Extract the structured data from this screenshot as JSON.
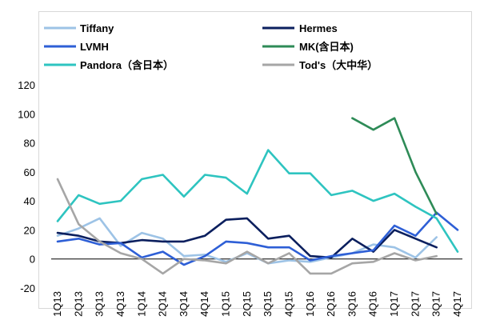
{
  "chart_data": {
    "type": "line",
    "title": "",
    "xlabel": "",
    "ylabel": "",
    "ylim": [
      -20,
      120
    ],
    "yticks": [
      -20,
      0,
      20,
      40,
      60,
      80,
      100,
      120
    ],
    "grid": false,
    "legend_position": "top",
    "categories": [
      "1Q13",
      "2Q13",
      "3Q13",
      "4Q13",
      "1Q14",
      "2Q14",
      "3Q14",
      "4Q14",
      "1Q15",
      "2Q15",
      "3Q15",
      "4Q15",
      "1Q16",
      "2Q16",
      "3Q16",
      "4Q16",
      "1Q17",
      "2Q17",
      "3Q17",
      "4Q17"
    ],
    "series": [
      {
        "name": "Tiffany",
        "color": "#9dc3e6",
        "values": [
          16,
          21,
          28,
          9,
          18,
          14,
          2,
          3,
          -2,
          4,
          -3,
          -1,
          -2,
          1,
          4,
          10,
          8,
          1,
          15,
          null
        ]
      },
      {
        "name": "Hermes",
        "color": "#0b1f5e",
        "values": [
          18,
          16,
          12,
          11,
          13,
          12,
          12,
          16,
          27,
          28,
          14,
          16,
          2,
          1,
          14,
          5,
          20,
          14,
          8,
          null
        ]
      },
      {
        "name": "LVMH",
        "color": "#2e5fd6",
        "values": [
          12,
          14,
          10,
          11,
          1,
          5,
          -4,
          2,
          12,
          11,
          8,
          8,
          -1,
          2,
          4,
          6,
          23,
          16,
          32,
          20
        ]
      },
      {
        "name": "MK(含日本)",
        "color": "#2e8b57",
        "values": [
          null,
          null,
          null,
          null,
          null,
          null,
          null,
          null,
          null,
          null,
          null,
          null,
          null,
          null,
          97,
          89,
          97,
          60,
          31,
          null
        ]
      },
      {
        "name": "Pandora（含日本）",
        "color": "#2ec4c0",
        "values": [
          26,
          44,
          38,
          40,
          55,
          58,
          43,
          58,
          56,
          45,
          75,
          59,
          59,
          44,
          47,
          40,
          45,
          36,
          28,
          5
        ]
      },
      {
        "name": "Tod's（大中华）",
        "color": "#a6a6a6",
        "values": [
          55,
          24,
          12,
          4,
          0,
          -10,
          0,
          -1,
          -3,
          5,
          -3,
          4,
          -10,
          -10,
          -3,
          -2,
          4,
          -1,
          2,
          null
        ]
      }
    ]
  }
}
